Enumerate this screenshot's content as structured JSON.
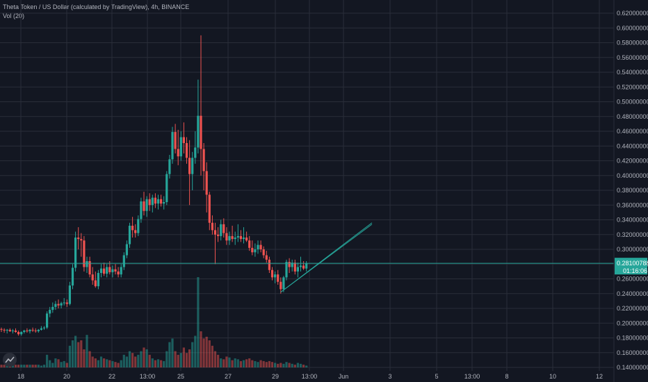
{
  "header": {
    "title": "Theta Token / US Dollar (calculated by TradingView), 4h, BINANCE",
    "volume_indicator": "Vol (20)"
  },
  "colors": {
    "background": "#131722",
    "grid": "#2a2e39",
    "up": "#26a69a",
    "down": "#ef5350",
    "price_line": "#26a69a",
    "axis_text": "#b2b5be"
  },
  "price_badge": {
    "price": "0.28100788",
    "countdown": "01:16:06"
  },
  "chart_data": {
    "type": "candlestick",
    "y_ticks": [
      "0.62000000",
      "0.60000000",
      "0.58000000",
      "0.56000000",
      "0.54000000",
      "0.52000000",
      "0.50000000",
      "0.48000000",
      "0.46000000",
      "0.44000000",
      "0.42000000",
      "0.40000000",
      "0.38000000",
      "0.36000000",
      "0.34000000",
      "0.32000000",
      "0.30000000",
      "0.28000000",
      "0.26000000",
      "0.24000000",
      "0.22000000",
      "0.20000000",
      "0.18000000",
      "0.16000000",
      "0.14000000"
    ],
    "ylim": [
      0.14,
      0.62
    ],
    "x_ticks": [
      "18",
      "20",
      "22",
      "13:00",
      "25",
      "27",
      "29",
      "13:00",
      "Jun",
      "3",
      "5",
      "13:00",
      "8",
      "10",
      "12"
    ],
    "last_price": 0.28100788,
    "candles": [
      [
        0.192,
        0.194,
        0.188,
        0.191
      ],
      [
        0.191,
        0.193,
        0.187,
        0.19
      ],
      [
        0.19,
        0.192,
        0.186,
        0.191
      ],
      [
        0.191,
        0.193,
        0.188,
        0.189
      ],
      [
        0.189,
        0.192,
        0.186,
        0.19
      ],
      [
        0.19,
        0.193,
        0.187,
        0.188
      ],
      [
        0.188,
        0.19,
        0.183,
        0.185
      ],
      [
        0.185,
        0.189,
        0.183,
        0.188
      ],
      [
        0.188,
        0.191,
        0.186,
        0.19
      ],
      [
        0.19,
        0.193,
        0.187,
        0.189
      ],
      [
        0.189,
        0.192,
        0.186,
        0.191
      ],
      [
        0.191,
        0.194,
        0.188,
        0.19
      ],
      [
        0.19,
        0.193,
        0.187,
        0.189
      ],
      [
        0.189,
        0.192,
        0.187,
        0.191
      ],
      [
        0.191,
        0.196,
        0.19,
        0.193
      ],
      [
        0.193,
        0.196,
        0.191,
        0.194
      ],
      [
        0.194,
        0.216,
        0.192,
        0.213
      ],
      [
        0.213,
        0.222,
        0.208,
        0.218
      ],
      [
        0.218,
        0.228,
        0.214,
        0.222
      ],
      [
        0.222,
        0.23,
        0.218,
        0.226
      ],
      [
        0.226,
        0.232,
        0.22,
        0.224
      ],
      [
        0.224,
        0.229,
        0.22,
        0.227
      ],
      [
        0.227,
        0.234,
        0.224,
        0.228
      ],
      [
        0.228,
        0.232,
        0.222,
        0.226
      ],
      [
        0.226,
        0.256,
        0.224,
        0.251
      ],
      [
        0.251,
        0.28,
        0.246,
        0.275
      ],
      [
        0.275,
        0.324,
        0.27,
        0.316
      ],
      [
        0.316,
        0.33,
        0.3,
        0.314
      ],
      [
        0.314,
        0.322,
        0.29,
        0.312
      ],
      [
        0.312,
        0.318,
        0.27,
        0.276
      ],
      [
        0.276,
        0.29,
        0.268,
        0.284
      ],
      [
        0.284,
        0.29,
        0.262,
        0.266
      ],
      [
        0.266,
        0.276,
        0.252,
        0.258
      ],
      [
        0.258,
        0.27,
        0.248,
        0.25
      ],
      [
        0.25,
        0.272,
        0.246,
        0.268
      ],
      [
        0.268,
        0.28,
        0.262,
        0.274
      ],
      [
        0.274,
        0.282,
        0.264,
        0.267
      ],
      [
        0.267,
        0.28,
        0.262,
        0.276
      ],
      [
        0.276,
        0.284,
        0.266,
        0.269
      ],
      [
        0.269,
        0.278,
        0.262,
        0.273
      ],
      [
        0.273,
        0.28,
        0.266,
        0.27
      ],
      [
        0.27,
        0.276,
        0.262,
        0.266
      ],
      [
        0.266,
        0.28,
        0.262,
        0.276
      ],
      [
        0.276,
        0.296,
        0.272,
        0.292
      ],
      [
        0.292,
        0.312,
        0.288,
        0.307
      ],
      [
        0.307,
        0.336,
        0.302,
        0.332
      ],
      [
        0.332,
        0.344,
        0.316,
        0.326
      ],
      [
        0.326,
        0.334,
        0.316,
        0.322
      ],
      [
        0.322,
        0.346,
        0.318,
        0.341
      ],
      [
        0.341,
        0.37,
        0.336,
        0.365
      ],
      [
        0.365,
        0.378,
        0.346,
        0.352
      ],
      [
        0.352,
        0.372,
        0.344,
        0.368
      ],
      [
        0.368,
        0.376,
        0.352,
        0.36
      ],
      [
        0.36,
        0.374,
        0.35,
        0.37
      ],
      [
        0.37,
        0.376,
        0.356,
        0.362
      ],
      [
        0.362,
        0.374,
        0.354,
        0.368
      ],
      [
        0.368,
        0.374,
        0.358,
        0.362
      ],
      [
        0.362,
        0.372,
        0.354,
        0.364
      ],
      [
        0.364,
        0.406,
        0.36,
        0.402
      ],
      [
        0.402,
        0.428,
        0.396,
        0.422
      ],
      [
        0.422,
        0.466,
        0.416,
        0.459
      ],
      [
        0.459,
        0.47,
        0.43,
        0.436
      ],
      [
        0.436,
        0.462,
        0.414,
        0.426
      ],
      [
        0.426,
        0.46,
        0.42,
        0.452
      ],
      [
        0.452,
        0.472,
        0.43,
        0.444
      ],
      [
        0.444,
        0.452,
        0.416,
        0.424
      ],
      [
        0.424,
        0.448,
        0.36,
        0.402
      ],
      [
        0.402,
        0.432,
        0.38,
        0.424
      ],
      [
        0.424,
        0.46,
        0.416,
        0.438
      ],
      [
        0.438,
        0.53,
        0.43,
        0.481
      ],
      [
        0.481,
        0.59,
        0.4,
        0.436
      ],
      [
        0.436,
        0.444,
        0.38,
        0.406
      ],
      [
        0.406,
        0.418,
        0.35,
        0.374
      ],
      [
        0.374,
        0.378,
        0.326,
        0.336
      ],
      [
        0.336,
        0.346,
        0.32,
        0.326
      ],
      [
        0.326,
        0.336,
        0.28,
        0.32
      ],
      [
        0.32,
        0.33,
        0.31,
        0.318
      ],
      [
        0.318,
        0.34,
        0.312,
        0.334
      ],
      [
        0.334,
        0.342,
        0.316,
        0.322
      ],
      [
        0.322,
        0.33,
        0.306,
        0.312
      ],
      [
        0.312,
        0.324,
        0.306,
        0.318
      ],
      [
        0.318,
        0.332,
        0.31,
        0.314
      ],
      [
        0.314,
        0.324,
        0.306,
        0.316
      ],
      [
        0.316,
        0.334,
        0.31,
        0.318
      ],
      [
        0.318,
        0.326,
        0.31,
        0.314
      ],
      [
        0.314,
        0.33,
        0.308,
        0.316
      ],
      [
        0.316,
        0.324,
        0.31,
        0.312
      ],
      [
        0.312,
        0.318,
        0.298,
        0.302
      ],
      [
        0.302,
        0.312,
        0.292,
        0.296
      ],
      [
        0.296,
        0.308,
        0.29,
        0.3
      ],
      [
        0.3,
        0.312,
        0.294,
        0.306
      ],
      [
        0.306,
        0.312,
        0.296,
        0.3
      ],
      [
        0.3,
        0.304,
        0.288,
        0.292
      ],
      [
        0.292,
        0.298,
        0.282,
        0.286
      ],
      [
        0.286,
        0.29,
        0.268,
        0.272
      ],
      [
        0.272,
        0.276,
        0.258,
        0.262
      ],
      [
        0.262,
        0.27,
        0.254,
        0.266
      ],
      [
        0.266,
        0.272,
        0.252,
        0.256
      ],
      [
        0.256,
        0.262,
        0.24,
        0.246
      ],
      [
        0.246,
        0.264,
        0.242,
        0.262
      ],
      [
        0.262,
        0.286,
        0.258,
        0.283
      ],
      [
        0.283,
        0.288,
        0.268,
        0.276
      ],
      [
        0.276,
        0.286,
        0.27,
        0.282
      ],
      [
        0.282,
        0.286,
        0.266,
        0.27
      ],
      [
        0.27,
        0.282,
        0.262,
        0.276
      ],
      [
        0.276,
        0.29,
        0.27,
        0.278
      ],
      [
        0.278,
        0.284,
        0.272,
        0.274
      ],
      [
        0.274,
        0.284,
        0.27,
        0.281
      ]
    ],
    "volumes": [
      3,
      3,
      3,
      3,
      3,
      3,
      3,
      3,
      3,
      3,
      3,
      3,
      3,
      3,
      2,
      3,
      14,
      8,
      5,
      10,
      9,
      6,
      7,
      5,
      24,
      30,
      35,
      28,
      30,
      20,
      36,
      18,
      12,
      10,
      8,
      12,
      10,
      9,
      8,
      7,
      6,
      5,
      8,
      14,
      12,
      18,
      16,
      12,
      14,
      18,
      22,
      20,
      14,
      10,
      8,
      9,
      8,
      7,
      18,
      28,
      32,
      18,
      14,
      16,
      22,
      16,
      20,
      28,
      35,
      100,
      40,
      32,
      34,
      30,
      24,
      18,
      14,
      10,
      9,
      12,
      11,
      8,
      10,
      9,
      7,
      8,
      9,
      10,
      8,
      7,
      6,
      8,
      7,
      6,
      7,
      6,
      5,
      4,
      5,
      4,
      6,
      5,
      4,
      3,
      5,
      4,
      3,
      2
    ],
    "trendlines": [
      {
        "from": [
          98,
          0.242
        ],
        "to": [
          130,
          0.336
        ]
      },
      {
        "from": [
          98,
          0.242
        ],
        "to": [
          130,
          0.334
        ]
      }
    ]
  }
}
